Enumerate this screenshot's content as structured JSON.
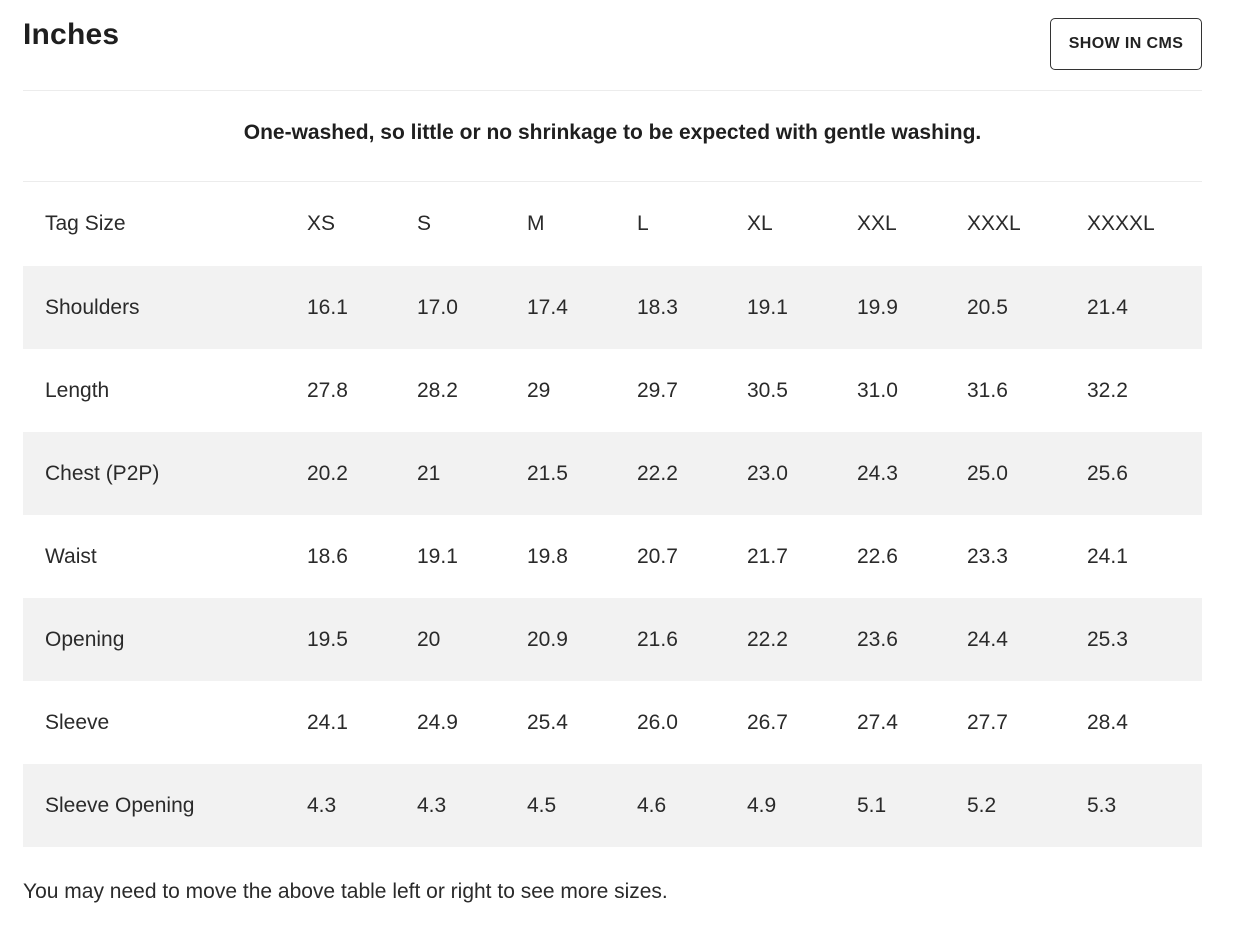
{
  "title": "Inches",
  "show_in_cms_label": "SHOW IN CMS",
  "note": "One-washed, so little or no shrinkage to be expected with gentle washing.",
  "table": {
    "headers": [
      "Tag Size",
      "XS",
      "S",
      "M",
      "L",
      "XL",
      "XXL",
      "XXXL",
      "XXXXL"
    ],
    "rows": [
      [
        "Shoulders",
        "16.1",
        "17.0",
        "17.4",
        "18.3",
        "19.1",
        "19.9",
        "20.5",
        "21.4"
      ],
      [
        "Length",
        "27.8",
        "28.2",
        "29",
        "29.7",
        "30.5",
        "31.0",
        "31.6",
        "32.2"
      ],
      [
        "Chest (P2P)",
        "20.2",
        "21",
        "21.5",
        "22.2",
        "23.0",
        "24.3",
        "25.0",
        "25.6"
      ],
      [
        "Waist",
        "18.6",
        "19.1",
        "19.8",
        "20.7",
        "21.7",
        "22.6",
        "23.3",
        "24.1"
      ],
      [
        "Opening",
        "19.5",
        "20",
        "20.9",
        "21.6",
        "22.2",
        "23.6",
        "24.4",
        "25.3"
      ],
      [
        "Sleeve",
        "24.1",
        "24.9",
        "25.4",
        "26.0",
        "26.7",
        "27.4",
        "27.7",
        "28.4"
      ],
      [
        "Sleeve Opening",
        "4.3",
        "4.3",
        "4.5",
        "4.6",
        "4.9",
        "5.1",
        "5.2",
        "5.3"
      ]
    ]
  },
  "footer_note": "You may need to move the above table left or right to see more sizes.",
  "colors": {
    "striped_row": "#f2f2f2",
    "text": "#222222",
    "button_border": "#333333"
  }
}
